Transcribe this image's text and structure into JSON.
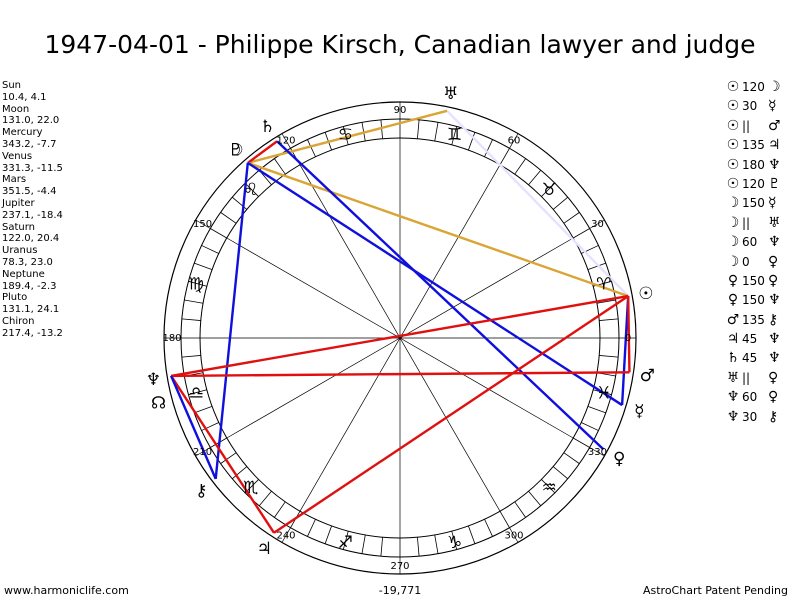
{
  "title": "1947-04-01 - Philippe Kirsch, Canadian lawyer and judge",
  "planet_positions": [
    {
      "name": "Sun",
      "coords": "10.4, 4.1"
    },
    {
      "name": "Moon",
      "coords": "131.0, 22.0"
    },
    {
      "name": "Mercury",
      "coords": "343.2, -7.7"
    },
    {
      "name": "Venus",
      "coords": "331.3, -11.5"
    },
    {
      "name": "Mars",
      "coords": "351.5, -4.4"
    },
    {
      "name": "Jupiter",
      "coords": "237.1, -18.4"
    },
    {
      "name": "Saturn",
      "coords": "122.0, 20.4"
    },
    {
      "name": "Uranus",
      "coords": "78.3, 23.0"
    },
    {
      "name": "Neptune",
      "coords": "189.4, -2.3"
    },
    {
      "name": "Pluto",
      "coords": "131.1, 24.1"
    },
    {
      "name": "Chiron",
      "coords": "217.4, -13.2"
    }
  ],
  "aspects": [
    {
      "p1": "☉",
      "angle": "120",
      "p2": "☽"
    },
    {
      "p1": "☉",
      "angle": "30",
      "p2": "☿"
    },
    {
      "p1": "☉",
      "angle": "||",
      "p2": "♂"
    },
    {
      "p1": "☉",
      "angle": "135",
      "p2": "♃"
    },
    {
      "p1": "☉",
      "angle": "180",
      "p2": "♆"
    },
    {
      "p1": "☉",
      "angle": "120",
      "p2": "♇"
    },
    {
      "p1": "☽",
      "angle": "150",
      "p2": "☿"
    },
    {
      "p1": "☽",
      "angle": "||",
      "p2": "♅"
    },
    {
      "p1": "☽",
      "angle": "60",
      "p2": "♆"
    },
    {
      "p1": "☽",
      "angle": "0",
      "p2": "♀"
    },
    {
      "p1": "♀",
      "angle": "150",
      "p2": "♀"
    },
    {
      "p1": "♀",
      "angle": "150",
      "p2": "♆"
    },
    {
      "p1": "♂",
      "angle": "135",
      "p2": "⚷"
    },
    {
      "p1": "♃",
      "angle": "45",
      "p2": "♆"
    },
    {
      "p1": "♄",
      "angle": "45",
      "p2": "♆"
    },
    {
      "p1": "♅",
      "angle": "||",
      "p2": "♀"
    },
    {
      "p1": "♆",
      "angle": "60",
      "p2": "♀"
    },
    {
      "p1": "♆",
      "angle": "30",
      "p2": "⚷"
    }
  ],
  "degree_labels": [
    {
      "deg": 0,
      "text": "0"
    },
    {
      "deg": 30,
      "text": "30"
    },
    {
      "deg": 60,
      "text": "60"
    },
    {
      "deg": 90,
      "text": "90"
    },
    {
      "deg": 120,
      "text": "120"
    },
    {
      "deg": 150,
      "text": "150"
    },
    {
      "deg": 180,
      "text": "180"
    },
    {
      "deg": 210,
      "text": "210"
    },
    {
      "deg": 240,
      "text": "240"
    },
    {
      "deg": 270,
      "text": "270"
    },
    {
      "deg": 300,
      "text": "300"
    },
    {
      "deg": 330,
      "text": "330"
    }
  ],
  "zodiac_signs": [
    {
      "name": "aries",
      "glyph": "♈",
      "deg": 15
    },
    {
      "name": "taurus",
      "glyph": "♉",
      "deg": 45
    },
    {
      "name": "gemini",
      "glyph": "♊",
      "deg": 75
    },
    {
      "name": "cancer",
      "glyph": "♋",
      "deg": 105
    },
    {
      "name": "leo",
      "glyph": "♌",
      "deg": 135
    },
    {
      "name": "virgo",
      "glyph": "♍",
      "deg": 165
    },
    {
      "name": "libra",
      "glyph": "♎",
      "deg": 195
    },
    {
      "name": "scorpio",
      "glyph": "♏",
      "deg": 225
    },
    {
      "name": "sagittarius",
      "glyph": "♐",
      "deg": 255
    },
    {
      "name": "capricorn",
      "glyph": "♑",
      "deg": 285
    },
    {
      "name": "aquarius",
      "glyph": "♒",
      "deg": 315
    },
    {
      "name": "pisces",
      "glyph": "♓",
      "deg": 345
    }
  ],
  "planets": [
    {
      "name": "sun",
      "glyph": "☉",
      "deg": 10.4
    },
    {
      "name": "moon",
      "glyph": "☽",
      "deg": 131.0
    },
    {
      "name": "mercury",
      "glyph": "☿",
      "deg": 343.2
    },
    {
      "name": "venus",
      "glyph": "♀",
      "deg": 331.3
    },
    {
      "name": "mars",
      "glyph": "♂",
      "deg": 351.5
    },
    {
      "name": "jupiter",
      "glyph": "♃",
      "deg": 237.1
    },
    {
      "name": "saturn",
      "glyph": "♄",
      "deg": 122.0
    },
    {
      "name": "uranus",
      "glyph": "♅",
      "deg": 78.3
    },
    {
      "name": "neptune",
      "glyph": "♆",
      "deg": 189.4
    },
    {
      "name": "pluto",
      "glyph": "♇",
      "deg": 131.1
    },
    {
      "name": "chiron",
      "glyph": "⚷",
      "deg": 217.4
    },
    {
      "name": "north-node",
      "glyph": "☊",
      "deg": 195
    }
  ],
  "aspect_lines": [
    {
      "from": 10.4,
      "to": 78.3,
      "color": "#e8e0ff"
    },
    {
      "from": 78.3,
      "to": 131.0,
      "color": "#d9a636"
    },
    {
      "from": 122.0,
      "to": 131.0,
      "color": "#e01010"
    },
    {
      "from": 10.4,
      "to": 131.0,
      "color": "#d9a636"
    },
    {
      "from": 131.0,
      "to": 343.2,
      "color": "#1010dd"
    },
    {
      "from": 122.0,
      "to": 331.3,
      "color": "#1010dd"
    },
    {
      "from": 131.0,
      "to": 217.4,
      "color": "#1010dd"
    },
    {
      "from": 10.4,
      "to": 343.2,
      "color": "#1010dd"
    },
    {
      "from": 10.4,
      "to": 189.4,
      "color": "#e01010"
    },
    {
      "from": 10.4,
      "to": 237.1,
      "color": "#e01010"
    },
    {
      "from": 189.4,
      "to": 237.1,
      "color": "#e01010"
    },
    {
      "from": 189.4,
      "to": 351.5,
      "color": "#e01010"
    },
    {
      "from": 189.4,
      "to": 217.4,
      "color": "#1010dd"
    },
    {
      "from": 10.4,
      "to": 351.5,
      "color": "#e01010"
    }
  ],
  "colors": {
    "trine": "#1010dd",
    "square_opposition": "#e01010",
    "gold": "#d9a636",
    "ring": "#000000"
  },
  "footer": {
    "left": "www.harmoniclife.com",
    "center": "-19,771",
    "right": "AstroChart Patent Pending"
  }
}
